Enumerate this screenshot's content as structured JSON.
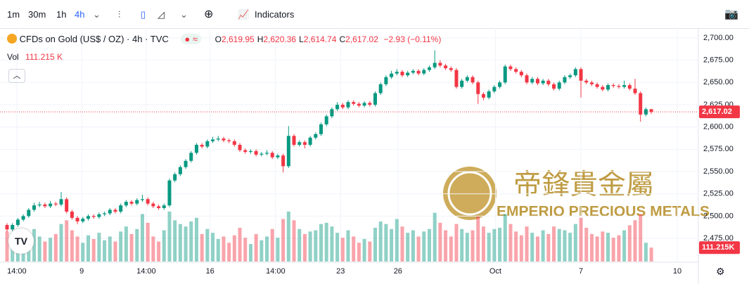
{
  "toolbar": {
    "intervals": [
      "1m",
      "30m",
      "1h",
      "4h"
    ],
    "active": "4h",
    "indicators": "Indicators"
  },
  "chart_data": {
    "type": "candlestick",
    "symbol": "CFDs on Gold (US$ / OZ) · 4h · TVC",
    "legend": [
      {
        "key": "O",
        "label": "2,619.95"
      },
      {
        "key": "H",
        "label": "2,620.36"
      },
      {
        "key": "L",
        "label": "2,614.74"
      },
      {
        "key": "C",
        "label": "2,617.02"
      }
    ],
    "change": "−2.93 (−0.11%)",
    "volume_title": "Vol",
    "volume_label": "111.215 K",
    "volume_tag": "111.215K",
    "price_tag": "2,617.02",
    "watermark": [
      "帝鋒貴金屬",
      "EMPERIO PRECIOUS METALS"
    ],
    "up_color": "#089981",
    "down_color": "#f23645",
    "ylim": [
      2449,
      2711
    ],
    "vlim": [
      0,
      450000
    ],
    "xlim": [
      -1.3,
      127.3
    ],
    "yticks": [
      {
        "value": 2475,
        "label": "2,475.00"
      },
      {
        "value": 2500,
        "label": "2,500.00"
      },
      {
        "value": 2525,
        "label": "2,525.00"
      },
      {
        "value": 2550,
        "label": "2,550.00"
      },
      {
        "value": 2575,
        "label": "2,575.00"
      },
      {
        "value": 2600,
        "label": "2,600.00"
      },
      {
        "value": 2625,
        "label": "2,625.00"
      },
      {
        "value": 2650,
        "label": "2,650.00"
      },
      {
        "value": 2675,
        "label": "2,675.00"
      },
      {
        "value": 2700,
        "label": "2,700.00"
      }
    ],
    "xticks": [
      {
        "value": 1.8,
        "label": "14:00"
      },
      {
        "value": 13.8,
        "label": "9"
      },
      {
        "value": 25.7,
        "label": "14:00"
      },
      {
        "value": 37.5,
        "label": "16"
      },
      {
        "value": 49.6,
        "label": "14:00"
      },
      {
        "value": 61.6,
        "label": "23"
      },
      {
        "value": 72.2,
        "label": "26"
      },
      {
        "value": 90.2,
        "label": "Oct"
      },
      {
        "value": 106,
        "label": "7"
      },
      {
        "value": 123.8,
        "label": "10"
      }
    ],
    "ohlc": [
      [
        2490,
        2492,
        2482,
        2485
      ],
      [
        2485,
        2492,
        2483,
        2490
      ],
      [
        2490,
        2498,
        2488,
        2496
      ],
      [
        2496,
        2502,
        2494,
        2500
      ],
      [
        2500,
        2509,
        2498,
        2507
      ],
      [
        2507,
        2515,
        2505,
        2512
      ],
      [
        2512,
        2516,
        2510,
        2513
      ],
      [
        2513,
        2515,
        2509,
        2511
      ],
      [
        2511,
        2517,
        2509,
        2514
      ],
      [
        2514,
        2516,
        2511,
        2513
      ],
      [
        2513,
        2527,
        2511,
        2519
      ],
      [
        2519,
        2521,
        2503,
        2505
      ],
      [
        2505,
        2507,
        2496,
        2498
      ],
      [
        2498,
        2500,
        2491,
        2494
      ],
      [
        2494,
        2499,
        2492,
        2497
      ],
      [
        2497,
        2502,
        2495,
        2500
      ],
      [
        2500,
        2502,
        2497,
        2499
      ],
      [
        2499,
        2504,
        2497,
        2502
      ],
      [
        2502,
        2505,
        2500,
        2503
      ],
      [
        2503,
        2509,
        2501,
        2507
      ],
      [
        2507,
        2509,
        2503,
        2505
      ],
      [
        2505,
        2514,
        2503,
        2512
      ],
      [
        2512,
        2518,
        2510,
        2516
      ],
      [
        2516,
        2518,
        2512,
        2514
      ],
      [
        2514,
        2520,
        2512,
        2518
      ],
      [
        2518,
        2524,
        2516,
        2519
      ],
      [
        2519,
        2521,
        2512,
        2514
      ],
      [
        2514,
        2516,
        2509,
        2511
      ],
      [
        2511,
        2513,
        2507,
        2509
      ],
      [
        2509,
        2514,
        2507,
        2512
      ],
      [
        2512,
        2542,
        2510,
        2540
      ],
      [
        2540,
        2549,
        2538,
        2547
      ],
      [
        2547,
        2557,
        2545,
        2555
      ],
      [
        2555,
        2564,
        2553,
        2562
      ],
      [
        2562,
        2573,
        2560,
        2571
      ],
      [
        2571,
        2582,
        2569,
        2580
      ],
      [
        2580,
        2582,
        2576,
        2578
      ],
      [
        2578,
        2586,
        2576,
        2584
      ],
      [
        2584,
        2589,
        2582,
        2586
      ],
      [
        2586,
        2590,
        2584,
        2587
      ],
      [
        2587,
        2589,
        2583,
        2585
      ],
      [
        2585,
        2587,
        2582,
        2584
      ],
      [
        2584,
        2586,
        2578,
        2580
      ],
      [
        2580,
        2582,
        2572,
        2574
      ],
      [
        2574,
        2576,
        2570,
        2572
      ],
      [
        2572,
        2575,
        2570,
        2573
      ],
      [
        2573,
        2575,
        2567,
        2569
      ],
      [
        2569,
        2572,
        2567,
        2570
      ],
      [
        2570,
        2574,
        2568,
        2571
      ],
      [
        2571,
        2573,
        2564,
        2566
      ],
      [
        2566,
        2570,
        2564,
        2568
      ],
      [
        2568,
        2570,
        2549,
        2556
      ],
      [
        2556,
        2601,
        2554,
        2590
      ],
      [
        2590,
        2592,
        2578,
        2580
      ],
      [
        2580,
        2585,
        2578,
        2583
      ],
      [
        2583,
        2585,
        2576,
        2580
      ],
      [
        2580,
        2590,
        2578,
        2588
      ],
      [
        2588,
        2594,
        2586,
        2592
      ],
      [
        2592,
        2605,
        2590,
        2603
      ],
      [
        2603,
        2614,
        2601,
        2612
      ],
      [
        2612,
        2622,
        2610,
        2620
      ],
      [
        2620,
        2628,
        2618,
        2625
      ],
      [
        2625,
        2627,
        2620,
        2622
      ],
      [
        2622,
        2630,
        2620,
        2628
      ],
      [
        2628,
        2630,
        2624,
        2626
      ],
      [
        2626,
        2628,
        2622,
        2624
      ],
      [
        2624,
        2629,
        2622,
        2627
      ],
      [
        2627,
        2629,
        2623,
        2625
      ],
      [
        2625,
        2640,
        2623,
        2638
      ],
      [
        2638,
        2650,
        2636,
        2648
      ],
      [
        2648,
        2658,
        2646,
        2656
      ],
      [
        2656,
        2663,
        2654,
        2660
      ],
      [
        2660,
        2665,
        2658,
        2662
      ],
      [
        2662,
        2664,
        2656,
        2658
      ],
      [
        2658,
        2663,
        2656,
        2661
      ],
      [
        2661,
        2665,
        2659,
        2663
      ],
      [
        2663,
        2665,
        2658,
        2660
      ],
      [
        2660,
        2666,
        2658,
        2664
      ],
      [
        2664,
        2669,
        2662,
        2667
      ],
      [
        2667,
        2686,
        2665,
        2672
      ],
      [
        2672,
        2675,
        2667,
        2669
      ],
      [
        2669,
        2671,
        2664,
        2666
      ],
      [
        2666,
        2668,
        2662,
        2664
      ],
      [
        2664,
        2666,
        2643,
        2645
      ],
      [
        2645,
        2654,
        2643,
        2652
      ],
      [
        2652,
        2658,
        2650,
        2656
      ],
      [
        2656,
        2658,
        2648,
        2650
      ],
      [
        2650,
        2652,
        2626,
        2637
      ],
      [
        2637,
        2639,
        2630,
        2633
      ],
      [
        2633,
        2642,
        2631,
        2640
      ],
      [
        2640,
        2647,
        2638,
        2645
      ],
      [
        2645,
        2652,
        2643,
        2650
      ],
      [
        2650,
        2670,
        2648,
        2668
      ],
      [
        2668,
        2670,
        2663,
        2665
      ],
      [
        2665,
        2667,
        2660,
        2662
      ],
      [
        2662,
        2664,
        2656,
        2658
      ],
      [
        2658,
        2660,
        2648,
        2650
      ],
      [
        2650,
        2656,
        2648,
        2654
      ],
      [
        2654,
        2656,
        2647,
        2649
      ],
      [
        2649,
        2654,
        2647,
        2652
      ],
      [
        2652,
        2654,
        2646,
        2648
      ],
      [
        2648,
        2650,
        2641,
        2643
      ],
      [
        2643,
        2652,
        2641,
        2650
      ],
      [
        2650,
        2658,
        2648,
        2656
      ],
      [
        2656,
        2660,
        2654,
        2658
      ],
      [
        2658,
        2667,
        2656,
        2665
      ],
      [
        2665,
        2667,
        2633,
        2652
      ],
      [
        2652,
        2654,
        2648,
        2650
      ],
      [
        2650,
        2652,
        2646,
        2648
      ],
      [
        2648,
        2650,
        2643,
        2645
      ],
      [
        2645,
        2647,
        2640,
        2642
      ],
      [
        2642,
        2649,
        2640,
        2647
      ],
      [
        2647,
        2649,
        2644,
        2646
      ],
      [
        2646,
        2648,
        2643,
        2645
      ],
      [
        2645,
        2652,
        2643,
        2647
      ],
      [
        2647,
        2649,
        2641,
        2643
      ],
      [
        2643,
        2654,
        2636,
        2638
      ],
      [
        2638,
        2640,
        2606,
        2614
      ],
      [
        2614,
        2622,
        2612,
        2619.95
      ],
      [
        2619.95,
        2620.36,
        2614.74,
        2617.02
      ]
    ],
    "volume": [
      240000,
      180000,
      210000,
      150000,
      170000,
      260000,
      200000,
      160000,
      190000,
      220000,
      300000,
      330000,
      250000,
      200000,
      150000,
      210000,
      180000,
      230000,
      170000,
      200000,
      160000,
      240000,
      280000,
      220000,
      260000,
      380000,
      310000,
      200000,
      160000,
      250000,
      400000,
      330000,
      300000,
      280000,
      320000,
      350000,
      220000,
      260000,
      230000,
      180000,
      200000,
      150000,
      210000,
      270000,
      190000,
      140000,
      220000,
      170000,
      200000,
      260000,
      190000,
      340000,
      400000,
      330000,
      260000,
      220000,
      240000,
      250000,
      300000,
      310000,
      280000,
      230000,
      190000,
      250000,
      200000,
      150000,
      180000,
      160000,
      270000,
      320000,
      300000,
      260000,
      340000,
      280000,
      230000,
      250000,
      200000,
      240000,
      260000,
      390000,
      310000,
      250000,
      200000,
      300000,
      260000,
      230000,
      250000,
      360000,
      280000,
      230000,
      260000,
      270000,
      380000,
      300000,
      240000,
      210000,
      280000,
      230000,
      200000,
      250000,
      220000,
      280000,
      260000,
      250000,
      230000,
      300000,
      350000,
      270000,
      220000,
      200000,
      240000,
      230000,
      190000,
      210000,
      250000,
      290000,
      330000,
      380000,
      150000,
      111215
    ]
  }
}
